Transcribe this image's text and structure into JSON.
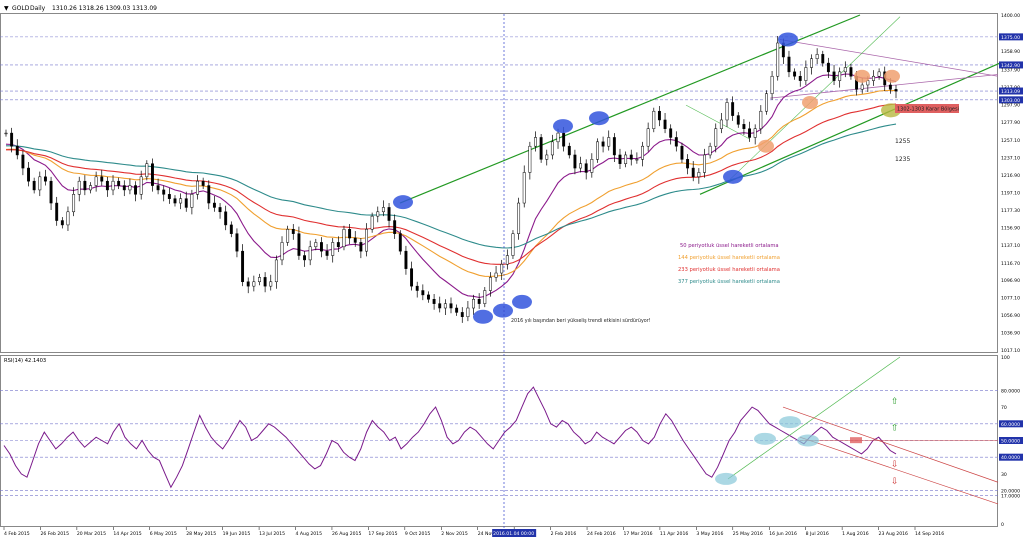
{
  "header": {
    "symbol": "GOLD",
    "timeframe": "Daily",
    "ohlc": "1310.26 1318.26 1309.03 1313.09",
    "rsi_label": "RSI(14) 42.1403"
  },
  "annotations": {
    "zone_label": "1302-1303 Karar Bölgesi",
    "trend_note": "2016 yılı başından beri yükseliş trendi etkisini sürdürüyor!",
    "level_1255": "1255",
    "level_1235": "1235"
  },
  "chart_data": [
    {
      "type": "line",
      "title": "",
      "subtitle": "",
      "xlabel": "",
      "ylabel": "",
      "x_tick_labels": [
        "4 Feb 2015",
        "26 Feb 2015",
        "20 Mar 2015",
        "14 Apr 2015",
        "6 May 2015",
        "28 May 2015",
        "19 Jun 2015",
        "13 Jul 2015",
        "4 Aug 2015",
        "26 Aug 2015",
        "17 Sep 2015",
        "9 Oct 2015",
        "2 Nov 2015",
        "24 Nov 2015",
        "2016.01.04 00:00",
        "2 Feb 2016",
        "24 Feb 2016",
        "17 Mar 2016",
        "11 Apr 2016",
        "3 May 2016",
        "25 May 2016",
        "16 Jun 2016",
        "8 Jul 2016",
        "1 Aug 2016",
        "23 Aug 2016",
        "14 Sep 2016"
      ],
      "y_tick_labels": [
        "1400.00",
        "1375.00",
        "1358.90",
        "1342.90",
        "1337.90",
        "1317.90",
        "1313.09",
        "1303.00",
        "1297.90",
        "1277.90",
        "1257.10",
        "1237.10",
        "1216.90",
        "1197.10",
        "1177.30",
        "1156.90",
        "1137.10",
        "1116.70",
        "1096.90",
        "1077.10",
        "1056.90",
        "1036.90",
        "1017.10"
      ],
      "highlighted_labels": [
        "1375.00",
        "1342.90",
        "1313.09",
        "1303.00"
      ],
      "ylim": [
        1017,
        1400
      ],
      "grid": true,
      "legend_placement": "lower-middle",
      "price_series": {
        "name": "",
        "values": [
          1265,
          1250,
          1240,
          1225,
          1210,
          1200,
          1215,
          1210,
          1185,
          1165,
          1160,
          1175,
          1195,
          1210,
          1200,
          1205,
          1215,
          1210,
          1200,
          1210,
          1205,
          1200,
          1205,
          1195,
          1215,
          1230,
          1205,
          1200,
          1195,
          1190,
          1185,
          1190,
          1180,
          1195,
          1210,
          1205,
          1185,
          1180,
          1175,
          1160,
          1150,
          1130,
          1095,
          1090,
          1095,
          1100,
          1090,
          1095,
          1120,
          1140,
          1155,
          1150,
          1125,
          1120,
          1135,
          1140,
          1130,
          1125,
          1140,
          1135,
          1155,
          1145,
          1140,
          1130,
          1155,
          1170,
          1175,
          1180,
          1165,
          1150,
          1130,
          1110,
          1090,
          1085,
          1080,
          1075,
          1070,
          1065,
          1070,
          1065,
          1060,
          1055,
          1065,
          1075,
          1070,
          1085,
          1100,
          1105,
          1115,
          1125,
          1150,
          1185,
          1220,
          1250,
          1260,
          1235,
          1240,
          1255,
          1265,
          1250,
          1240,
          1225,
          1230,
          1220,
          1235,
          1255,
          1250,
          1260,
          1240,
          1230,
          1240,
          1235,
          1235,
          1250,
          1270,
          1290,
          1280,
          1270,
          1260,
          1250,
          1235,
          1225,
          1215,
          1220,
          1240,
          1250,
          1270,
          1280,
          1300,
          1285,
          1275,
          1270,
          1260,
          1270,
          1290,
          1310,
          1330,
          1368,
          1352,
          1335,
          1330,
          1325,
          1340,
          1350,
          1355,
          1345,
          1335,
          1325,
          1335,
          1340,
          1330,
          1315,
          1320,
          1325,
          1330,
          1335,
          1320,
          1315,
          1313
        ]
      },
      "series": [
        {
          "name": "50 periyotluk üssel hareketli ortalama",
          "color": "#8b1a8b"
        },
        {
          "name": "144 periyotluk üssel hareketli ortalama",
          "color": "#f0a030"
        },
        {
          "name": "233 periyotluk üssel hareketli ortalama",
          "color": "#e03030"
        },
        {
          "name": "377 periyotluk üssel hareketli ortalama",
          "color": "#2e8b8b"
        }
      ],
      "colors": {
        "ma50": "#8b1a8b",
        "ma144": "#f0a030",
        "ma233": "#e03030",
        "ma377": "#2e8b8b",
        "channel": "#229922",
        "candles": "#000000",
        "zone": "#e06060",
        "highlight": "#3355dd"
      }
    },
    {
      "type": "line",
      "title": "",
      "xlabel": "",
      "ylabel": "",
      "y_tick_labels": [
        "100",
        "80.0000",
        "70",
        "60.0000",
        "50.0000",
        "40.0000",
        "30",
        "20.0000",
        "17.0000",
        "0"
      ],
      "highlighted_labels": [
        "60.0000",
        "50.0000",
        "40.0000"
      ],
      "ylim": [
        0,
        100
      ],
      "grid": true,
      "rsi_series": {
        "name": "RSI(14)",
        "values": [
          47,
          42,
          35,
          30,
          28,
          38,
          48,
          55,
          50,
          45,
          48,
          52,
          55,
          50,
          46,
          49,
          52,
          50,
          48,
          55,
          60,
          52,
          48,
          45,
          50,
          44,
          40,
          38,
          30,
          22,
          28,
          35,
          45,
          55,
          65,
          58,
          52,
          48,
          45,
          50,
          56,
          62,
          58,
          50,
          52,
          56,
          60,
          58,
          55,
          52,
          48,
          44,
          40,
          36,
          33,
          35,
          42,
          50,
          48,
          43,
          40,
          38,
          45,
          55,
          62,
          58,
          55,
          50,
          52,
          45,
          48,
          52,
          55,
          60,
          66,
          70,
          62,
          52,
          48,
          50,
          55,
          58,
          56,
          52,
          48,
          45,
          50,
          55,
          58,
          62,
          70,
          78,
          82,
          75,
          68,
          60,
          58,
          62,
          60,
          55,
          52,
          48,
          50,
          55,
          52,
          50,
          48,
          52,
          56,
          58,
          55,
          50,
          48,
          52,
          60,
          66,
          62,
          56,
          50,
          45,
          40,
          35,
          30,
          28,
          34,
          42,
          50,
          55,
          62,
          66,
          70,
          68,
          64,
          60,
          58,
          56,
          54,
          52,
          50,
          48,
          52,
          55,
          58,
          56,
          52,
          50,
          48,
          46,
          44,
          42,
          45,
          50,
          52,
          48,
          44,
          42
        ]
      }
    }
  ]
}
